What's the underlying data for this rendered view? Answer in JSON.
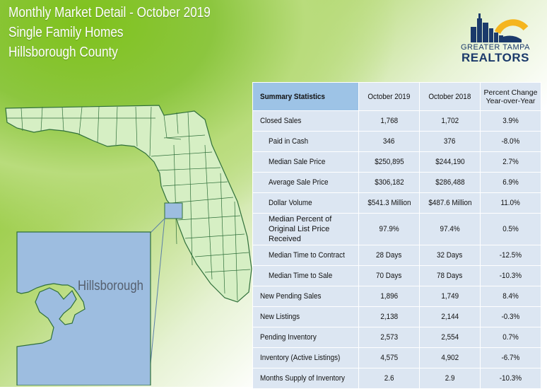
{
  "header": {
    "title_line1": "Monthly Market Detail - October 2019",
    "title_line2": "Single Family Homes",
    "title_line3": "Hillsborough County"
  },
  "logo": {
    "line1": "GREATER TAMPA",
    "line2": "REALTORS",
    "colors": {
      "navy": "#1b3a6b",
      "gold": "#f5b51e"
    }
  },
  "map": {
    "county_label": "Hillsborough",
    "colors": {
      "state_fill": "#d6efc4",
      "county_fill": "#9dbde0",
      "outline": "#2f6f3a"
    }
  },
  "table": {
    "headers": [
      "Summary Statistics",
      "October 2019",
      "October 2018",
      "Percent Change Year-over-Year"
    ],
    "rows": [
      {
        "label": "Closed Sales",
        "sub": false,
        "v2019": "1,768",
        "v2018": "1,702",
        "change": "3.9%"
      },
      {
        "label": "Paid in Cash",
        "sub": true,
        "v2019": "346",
        "v2018": "376",
        "change": "-8.0%"
      },
      {
        "label": "Median Sale Price",
        "sub": true,
        "v2019": "$250,895",
        "v2018": "$244,190",
        "change": "2.7%"
      },
      {
        "label": "Average Sale Price",
        "sub": true,
        "v2019": "$306,182",
        "v2018": "$286,488",
        "change": "6.9%"
      },
      {
        "label": "Dollar Volume",
        "sub": true,
        "v2019": "$541.3 Million",
        "v2018": "$487.6 Million",
        "change": "11.0%"
      },
      {
        "label": "Median Percent of Original List Price Received",
        "sub": true,
        "v2019": "97.9%",
        "v2018": "97.4%",
        "change": "0.5%"
      },
      {
        "label": "Median Time to Contract",
        "sub": true,
        "v2019": "28 Days",
        "v2018": "32 Days",
        "change": "-12.5%"
      },
      {
        "label": "Median Time to Sale",
        "sub": true,
        "v2019": "70 Days",
        "v2018": "78 Days",
        "change": "-10.3%"
      },
      {
        "label": "New Pending Sales",
        "sub": false,
        "v2019": "1,896",
        "v2018": "1,749",
        "change": "8.4%"
      },
      {
        "label": "New Listings",
        "sub": false,
        "v2019": "2,138",
        "v2018": "2,144",
        "change": "-0.3%"
      },
      {
        "label": "Pending Inventory",
        "sub": false,
        "v2019": "2,573",
        "v2018": "2,554",
        "change": "0.7%"
      },
      {
        "label": "Inventory (Active Listings)",
        "sub": false,
        "v2019": "4,575",
        "v2018": "4,902",
        "change": "-6.7%"
      },
      {
        "label": "Months Supply of Inventory",
        "sub": false,
        "v2019": "2.6",
        "v2018": "2.9",
        "change": "-10.3%"
      }
    ]
  }
}
